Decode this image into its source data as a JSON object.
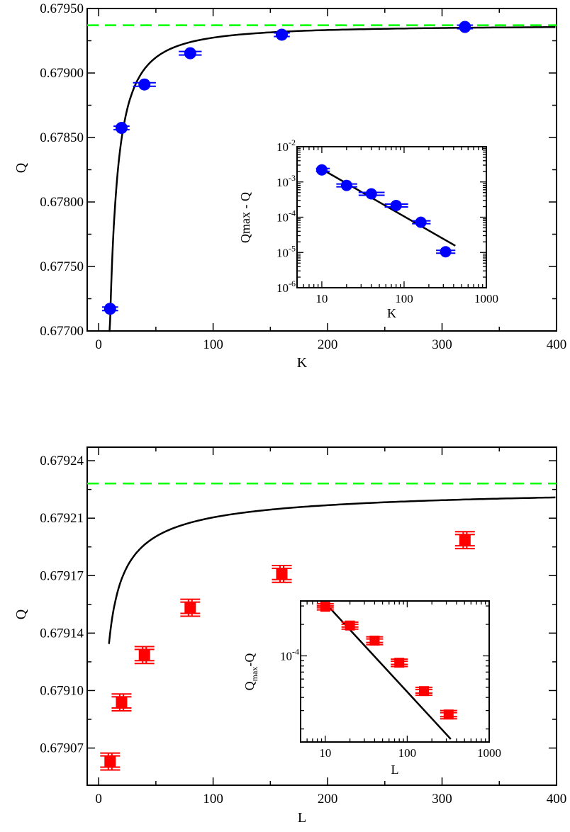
{
  "chart_data": [
    {
      "type": "scatter",
      "xlabel": "K",
      "ylabel": "Q",
      "xlim": [
        -10,
        400
      ],
      "ylim": [
        0.677,
        0.6795
      ],
      "xticks": [
        0,
        100,
        200,
        300,
        400
      ],
      "xtick_labels": [
        "0",
        "100",
        "200",
        "300",
        "400"
      ],
      "yticks": [
        0.677,
        0.6775,
        0.678,
        0.6785,
        0.679,
        0.6795
      ],
      "ytick_labels": [
        "0.67700",
        "0.67750",
        "0.67800",
        "0.67850",
        "0.67900",
        "0.67950"
      ],
      "marker": "circle",
      "marker_color": "#0000ff",
      "errorbar_orientation": "horizontal",
      "points": [
        {
          "x": 10,
          "y": 0.677172,
          "err": 7
        },
        {
          "x": 20,
          "y": 0.678574,
          "err": 7
        },
        {
          "x": 40,
          "y": 0.678911,
          "err": 10
        },
        {
          "x": 80,
          "y": 0.679153,
          "err": 10
        },
        {
          "x": 160,
          "y": 0.679297,
          "err": 7
        },
        {
          "x": 320,
          "y": 0.679357,
          "err": 7
        }
      ],
      "fit_curve": {
        "type": "Qmax - A*K^-b",
        "Qmax": 0.67937,
        "A": 0.0548,
        "b": 1.378,
        "color": "#000000"
      },
      "reference_line": {
        "y": 0.67937,
        "color": "#00ff00",
        "style": "dashed"
      },
      "inset": {
        "type": "scatter",
        "xlabel": "K",
        "ylabel": "Qmax - Q",
        "xscale": "log",
        "yscale": "log",
        "xlim": [
          5,
          1000
        ],
        "ylim": [
          1e-06,
          0.01
        ],
        "xtick_labels": [
          {
            "x": 10,
            "text": "10"
          },
          {
            "x": 100,
            "text": "100"
          },
          {
            "x": 1000,
            "text": "1000"
          }
        ],
        "ytick_labels": [
          {
            "y": 1e-06,
            "base": "10",
            "exp": "-6"
          },
          {
            "y": 1e-05,
            "base": "10",
            "exp": "-5"
          },
          {
            "y": 0.0001,
            "base": "10",
            "exp": "-4"
          },
          {
            "y": 0.001,
            "base": "10",
            "exp": "-3"
          },
          {
            "y": 0.01,
            "base": "10",
            "exp": "-2"
          }
        ],
        "points": [
          {
            "x": 10,
            "y": 0.0022,
            "xlo": 8.5,
            "xhi": 12.5
          },
          {
            "x": 20,
            "y": 0.0008,
            "xlo": 15,
            "xhi": 27
          },
          {
            "x": 40,
            "y": 0.00046,
            "xlo": 28,
            "xhi": 58
          },
          {
            "x": 80,
            "y": 0.000215,
            "xlo": 58,
            "xhi": 112
          },
          {
            "x": 160,
            "y": 7.2e-05,
            "xlo": 125,
            "xhi": 210
          },
          {
            "x": 320,
            "y": 1.05e-05,
            "xlo": 245,
            "xhi": 420
          }
        ],
        "fit_line": [
          {
            "x": 10,
            "y": 0.0023
          },
          {
            "x": 420,
            "y": 1.55e-05
          }
        ]
      }
    },
    {
      "type": "scatter",
      "xlabel": "L",
      "ylabel": "Q",
      "xlim": [
        -10,
        400
      ],
      "ylim": [
        0.679048,
        0.679248
      ],
      "xticks": [
        0,
        100,
        200,
        300,
        400
      ],
      "xtick_labels": [
        "0",
        "100",
        "200",
        "300",
        "400"
      ],
      "yticks": [
        0.67907,
        0.679104,
        0.679138,
        0.679172,
        0.679206,
        0.67924
      ],
      "ytick_labels": [
        "0.67907",
        "0.67910",
        "0.67914",
        "0.67917",
        "0.67921",
        "0.67924"
      ],
      "marker": "square",
      "marker_color": "#ff0000",
      "errorbar_orientation": "vertical",
      "points": [
        {
          "x": 10,
          "y": 0.679062,
          "err": 5e-06
        },
        {
          "x": 20,
          "y": 0.679097,
          "err": 5e-06
        },
        {
          "x": 40,
          "y": 0.679125,
          "err": 5e-06
        },
        {
          "x": 80,
          "y": 0.679153,
          "err": 5e-06
        },
        {
          "x": 160,
          "y": 0.679173,
          "err": 5e-06
        },
        {
          "x": 320,
          "y": 0.679193,
          "err": 5e-06
        }
      ],
      "fit_curve": {
        "type": "Qmax - A*L^-b",
        "Qmax": 0.6792265,
        "A": 0.000392,
        "b": 0.6455,
        "color": "#000000"
      },
      "reference_line": {
        "y": 0.6792265,
        "color": "#00ff00",
        "style": "dashed"
      },
      "inset": {
        "type": "scatter",
        "xlabel": "L",
        "ylabel_main": "Q",
        "ylabel_sub": "max",
        "ylabel_tail": "-Q",
        "xscale": "log",
        "yscale": "log",
        "xlim": [
          5,
          1000
        ],
        "ylim": [
          1.5e-05,
          0.000335
        ],
        "xtick_labels": [
          {
            "x": 10,
            "text": "10"
          },
          {
            "x": 100,
            "text": "100"
          },
          {
            "x": 1000,
            "text": "1000"
          }
        ],
        "ytick_labels": [
          {
            "y": 0.0001,
            "base": "10",
            "exp": "-4"
          }
        ],
        "points": [
          {
            "x": 10,
            "y": 0.000295,
            "ylo": 0.000275,
            "yhi": 0.000315
          },
          {
            "x": 20,
            "y": 0.000195,
            "ylo": 0.00018,
            "yhi": 0.00021
          },
          {
            "x": 40,
            "y": 0.00014,
            "ylo": 0.000128,
            "yhi": 0.000152
          },
          {
            "x": 80,
            "y": 8.6e-05,
            "ylo": 7.9e-05,
            "yhi": 9.3e-05
          },
          {
            "x": 160,
            "y": 4.6e-05,
            "ylo": 4.2e-05,
            "yhi": 5e-05
          },
          {
            "x": 320,
            "y": 2.75e-05,
            "ylo": 2.5e-05,
            "yhi": 3e-05
          }
        ],
        "fit_line": [
          {
            "x": 10,
            "y": 0.00032
          },
          {
            "x": 340,
            "y": 1.6e-05
          }
        ]
      }
    }
  ]
}
